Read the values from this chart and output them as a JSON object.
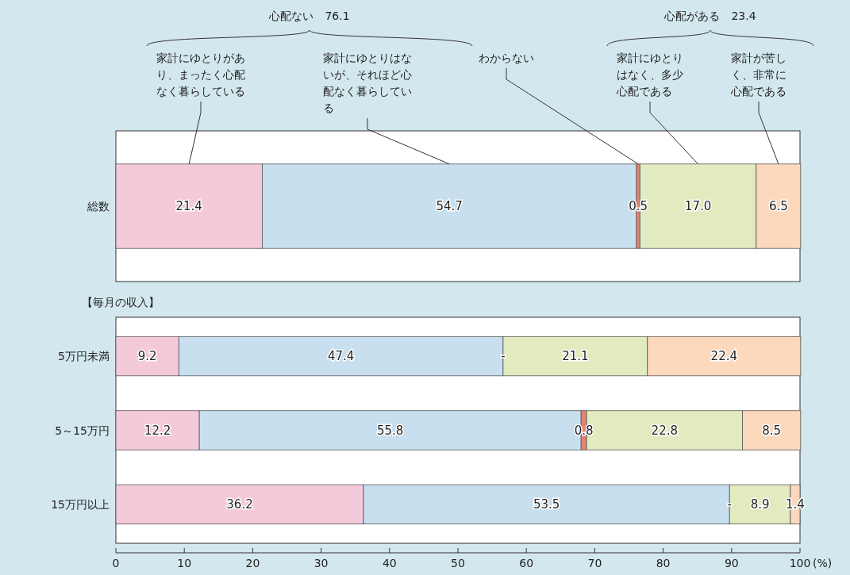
{
  "chart_data": [
    {
      "type": "bar",
      "orientation": "horizontal",
      "stacked": true,
      "legend": "top",
      "tick_labels": "y",
      "categories": [
        "総数"
      ],
      "xlim": [
        0,
        100
      ],
      "series": [
        {
          "name": "家計にゆとりがあり、まったく心配なく暮らしている",
          "color": "#f4cadb",
          "values": [
            21.4
          ],
          "value_labels": [
            "21.4"
          ]
        },
        {
          "name": "家計にゆとりはないが、それほど心配なく暮らしている",
          "color": "#c8dff0",
          "values": [
            54.7
          ],
          "value_labels": [
            "54.7"
          ]
        },
        {
          "name": "わからない",
          "color": "#e8836f",
          "values": [
            0.5
          ],
          "value_labels": [
            "0.5"
          ]
        },
        {
          "name": "家計にゆとりはなく、多少心配である",
          "color": "#e2ebbf",
          "values": [
            17.0
          ],
          "value_labels": [
            "17.0"
          ]
        },
        {
          "name": "家計が苦しく、非常に心配である",
          "color": "#fcd8bd",
          "values": [
            6.5
          ],
          "value_labels": [
            "6.5"
          ]
        }
      ],
      "annotations": [
        "心配ない　76.1",
        "心配がある　23.4"
      ]
    },
    {
      "type": "bar",
      "orientation": "horizontal",
      "stacked": true,
      "title": "【毎月の収入】",
      "categories": [
        "5万円未満",
        "5～15万円",
        "15万円以上"
      ],
      "xlim": [
        0,
        100
      ],
      "xticks": [
        0,
        10,
        20,
        30,
        40,
        50,
        60,
        70,
        80,
        90,
        100
      ],
      "xlabel": "(%)",
      "series": [
        {
          "color": "#f4cadb",
          "values": [
            9.2,
            12.2,
            36.2
          ],
          "value_labels": [
            "9.2",
            "12.2",
            "36.2"
          ]
        },
        {
          "color": "#c8dff0",
          "values": [
            47.4,
            55.8,
            53.5
          ],
          "value_labels": [
            "47.4",
            "55.8",
            "53.5"
          ]
        },
        {
          "color": "#e8836f",
          "values": [
            null,
            0.8,
            null
          ],
          "value_labels": [
            "-",
            "0.8",
            "-"
          ]
        },
        {
          "color": "#e2ebbf",
          "values": [
            21.1,
            22.8,
            8.9
          ],
          "value_labels": [
            "21.1",
            "22.8",
            "8.9"
          ]
        },
        {
          "color": "#fcd8bd",
          "values": [
            22.4,
            8.5,
            1.4
          ],
          "value_labels": [
            "22.4",
            "8.5",
            "1.4"
          ]
        }
      ]
    }
  ]
}
